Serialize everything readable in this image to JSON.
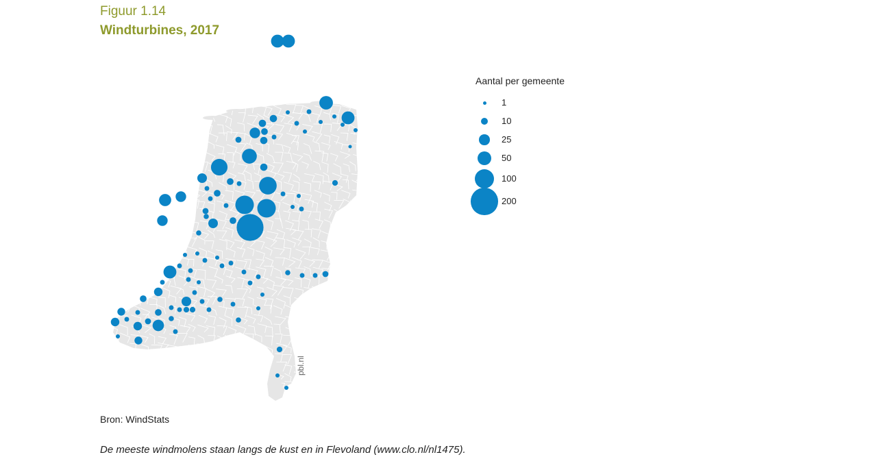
{
  "figure": {
    "label": "Figuur 1.14",
    "title": "Windturbines, 2017"
  },
  "legend": {
    "title": "Aantal per gemeente",
    "items": [
      {
        "label": "1",
        "value": 1
      },
      {
        "label": "10",
        "value": 10
      },
      {
        "label": "25",
        "value": 25
      },
      {
        "label": "50",
        "value": 50
      },
      {
        "label": "100",
        "value": 100
      },
      {
        "label": "200",
        "value": 200
      }
    ]
  },
  "colors": {
    "bubble": "#0b84c6",
    "land": "#e6e6e6",
    "border": "#ffffff",
    "title": "#8e9a2c"
  },
  "watermark": "pbl.nl",
  "source": "Bron: WindStats",
  "caption": "De meeste windmolens staan langs de kust en in Flevoland (www.clo.nl/nl1475)."
}
